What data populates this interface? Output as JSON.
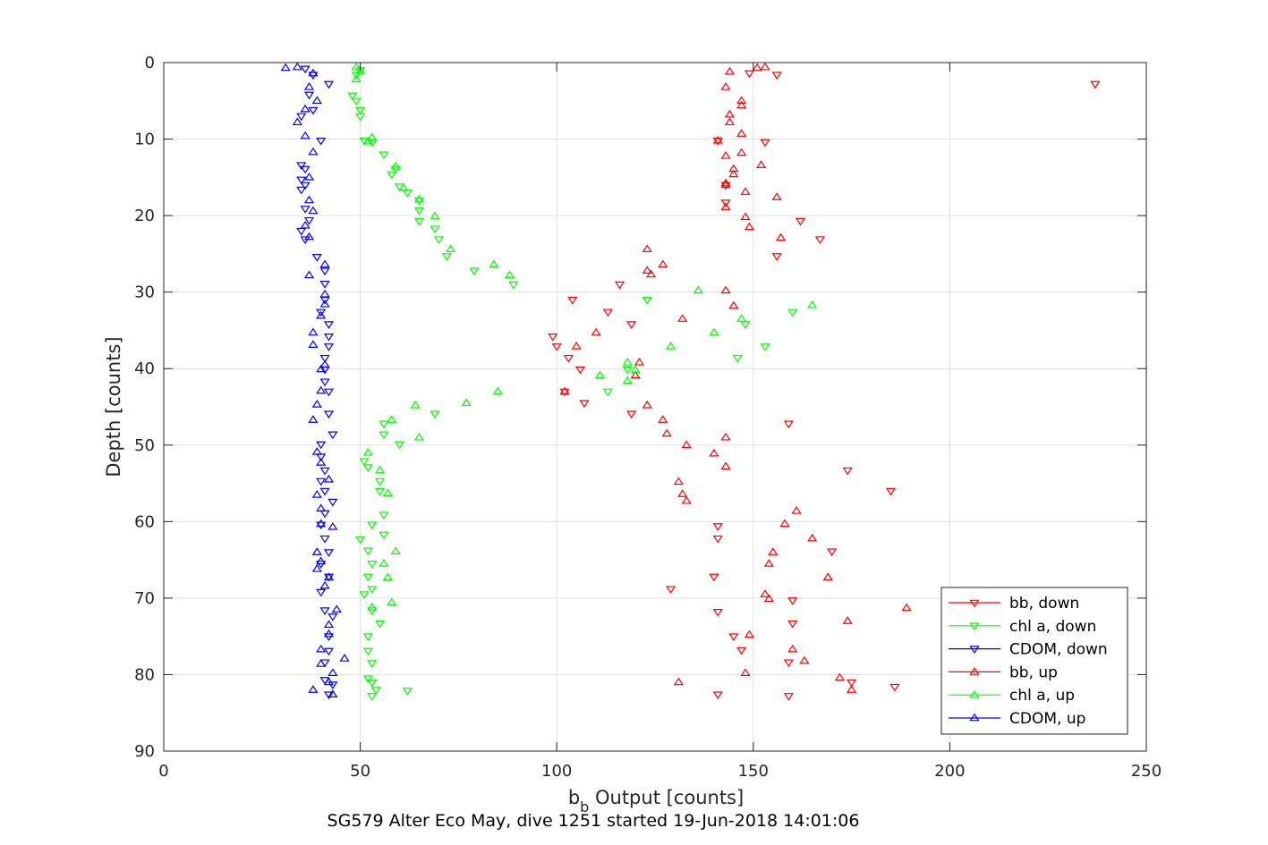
{
  "chart_data": {
    "type": "scatter",
    "xlabel": "b",
    "xlabel_subscript": "b",
    "xlabel_rest": " Output [counts]",
    "ylabel": "Depth [counts]",
    "caption": "SG579 Alter Eco May, dive 1251 started 19-Jun-2018 14:01:06",
    "xlim": [
      0,
      250
    ],
    "ylim": [
      0,
      90
    ],
    "y_reversed": true,
    "xticks": [
      0,
      50,
      100,
      150,
      200,
      250
    ],
    "yticks": [
      0,
      10,
      20,
      30,
      40,
      50,
      60,
      70,
      80,
      90
    ],
    "grid": true,
    "legend_position": "bottom-right",
    "series": [
      {
        "name": "bb, down",
        "color": "#ff0000",
        "marker": "triangle-down",
        "points": [
          [
            149,
            1.4
          ],
          [
            156,
            1.6
          ],
          [
            237,
            2.8
          ],
          [
            153,
            10.4
          ],
          [
            162,
            20.7
          ],
          [
            167,
            23.1
          ],
          [
            156,
            25.3
          ],
          [
            116,
            29.0
          ],
          [
            104,
            31.0
          ],
          [
            113,
            32.6
          ],
          [
            119,
            34.2
          ],
          [
            99,
            35.8
          ],
          [
            100,
            37.1
          ],
          [
            103,
            38.6
          ],
          [
            106,
            40.1
          ],
          [
            102,
            43.0
          ],
          [
            107,
            44.5
          ],
          [
            119,
            45.9
          ],
          [
            159,
            47.2
          ],
          [
            174,
            53.3
          ],
          [
            185,
            56.0
          ],
          [
            141,
            60.6
          ],
          [
            141,
            62.2
          ],
          [
            170,
            63.9
          ],
          [
            140,
            67.2
          ],
          [
            129,
            68.8
          ],
          [
            160,
            70.3
          ],
          [
            141,
            71.8
          ],
          [
            160,
            73.3
          ],
          [
            145,
            75.0
          ],
          [
            147,
            76.8
          ],
          [
            159,
            78.4
          ],
          [
            175,
            81.0
          ],
          [
            186,
            81.6
          ],
          [
            141,
            82.6
          ],
          [
            159,
            82.8
          ],
          [
            141,
            10.2
          ],
          [
            143,
            18.3
          ],
          [
            143,
            16.0
          ]
        ]
      },
      {
        "name": "chl a, down",
        "color": "#00ff00",
        "marker": "triangle-down",
        "points": [
          [
            50,
            1.0
          ],
          [
            49,
            1.6
          ],
          [
            48,
            4.3
          ],
          [
            49,
            5.0
          ],
          [
            50,
            6.2
          ],
          [
            50,
            7.0
          ],
          [
            51,
            10.2
          ],
          [
            53,
            10.4
          ],
          [
            56,
            12.0
          ],
          [
            59,
            13.9
          ],
          [
            58,
            14.6
          ],
          [
            60,
            16.2
          ],
          [
            62,
            17.0
          ],
          [
            65,
            18.0
          ],
          [
            65,
            19.3
          ],
          [
            65,
            20.7
          ],
          [
            69,
            21.7
          ],
          [
            70,
            23.1
          ],
          [
            72,
            25.3
          ],
          [
            79,
            27.2
          ],
          [
            89,
            29.0
          ],
          [
            123,
            31.0
          ],
          [
            148,
            34.2
          ],
          [
            160,
            32.6
          ],
          [
            153,
            37.1
          ],
          [
            146,
            38.6
          ],
          [
            118,
            40.1
          ],
          [
            113,
            43.0
          ],
          [
            69,
            45.9
          ],
          [
            60,
            49.9
          ],
          [
            51,
            52.1
          ],
          [
            52,
            52.9
          ],
          [
            55,
            54.7
          ],
          [
            55,
            56.0
          ],
          [
            56,
            59.1
          ],
          [
            53,
            60.4
          ],
          [
            56,
            61.7
          ],
          [
            50,
            62.3
          ],
          [
            52,
            63.8
          ],
          [
            53,
            65.5
          ],
          [
            52,
            67.2
          ],
          [
            53,
            68.8
          ],
          [
            51,
            69.5
          ],
          [
            53,
            71.6
          ],
          [
            55,
            73.3
          ],
          [
            52,
            75.0
          ],
          [
            52,
            76.9
          ],
          [
            53,
            78.5
          ],
          [
            52,
            80.5
          ],
          [
            53,
            81.0
          ],
          [
            54,
            82.0
          ],
          [
            62,
            82.1
          ],
          [
            53,
            82.8
          ],
          [
            56,
            47.2
          ],
          [
            56,
            48.6
          ]
        ]
      },
      {
        "name": "CDOM, down",
        "color": "#0000ff",
        "marker": "triangle-down",
        "points": [
          [
            36,
            0.8
          ],
          [
            38,
            1.6
          ],
          [
            42,
            2.8
          ],
          [
            37,
            4.2
          ],
          [
            38,
            6.2
          ],
          [
            35,
            7.0
          ],
          [
            40,
            10.2
          ],
          [
            36,
            13.9
          ],
          [
            35,
            15.3
          ],
          [
            35,
            16.6
          ],
          [
            36,
            19.1
          ],
          [
            37,
            20.6
          ],
          [
            35,
            22.0
          ],
          [
            36,
            23.1
          ],
          [
            39,
            25.4
          ],
          [
            41,
            27.2
          ],
          [
            41,
            28.9
          ],
          [
            41,
            31.0
          ],
          [
            40,
            32.6
          ],
          [
            42,
            34.2
          ],
          [
            42,
            35.8
          ],
          [
            42,
            37.1
          ],
          [
            41,
            38.6
          ],
          [
            41,
            40.1
          ],
          [
            41,
            41.7
          ],
          [
            42,
            43.0
          ],
          [
            42,
            45.9
          ],
          [
            43,
            48.6
          ],
          [
            40,
            49.9
          ],
          [
            40,
            51.5
          ],
          [
            41,
            53.3
          ],
          [
            40,
            54.7
          ],
          [
            41,
            56.0
          ],
          [
            43,
            57.4
          ],
          [
            41,
            58.9
          ],
          [
            40,
            60.4
          ],
          [
            41,
            62.2
          ],
          [
            42,
            64.0
          ],
          [
            40,
            65.5
          ],
          [
            42,
            67.2
          ],
          [
            40,
            69.2
          ],
          [
            41,
            71.6
          ],
          [
            43,
            72.4
          ],
          [
            42,
            75.0
          ],
          [
            42,
            76.9
          ],
          [
            41,
            78.4
          ],
          [
            41,
            80.7
          ],
          [
            43,
            81.3
          ],
          [
            42,
            82.6
          ],
          [
            35,
            13.4
          ],
          [
            36,
            16.0
          ]
        ]
      },
      {
        "name": "bb, up",
        "color": "#ff0000",
        "marker": "triangle-up",
        "points": [
          [
            151,
            0.7
          ],
          [
            153,
            0.6
          ],
          [
            144,
            1.2
          ],
          [
            143,
            3.2
          ],
          [
            147,
            5.0
          ],
          [
            147,
            5.6
          ],
          [
            144,
            6.8
          ],
          [
            144,
            7.8
          ],
          [
            147,
            9.3
          ],
          [
            141,
            10.2
          ],
          [
            143,
            12.2
          ],
          [
            147,
            11.8
          ],
          [
            145,
            13.9
          ],
          [
            145,
            14.6
          ],
          [
            152,
            13.4
          ],
          [
            143,
            16.0
          ],
          [
            148,
            16.9
          ],
          [
            156,
            17.6
          ],
          [
            143,
            18.9
          ],
          [
            148,
            20.2
          ],
          [
            149,
            21.5
          ],
          [
            157,
            22.9
          ],
          [
            123,
            24.4
          ],
          [
            123,
            27.2
          ],
          [
            124,
            27.7
          ],
          [
            127,
            26.4
          ],
          [
            143,
            29.8
          ],
          [
            145,
            31.8
          ],
          [
            132,
            33.5
          ],
          [
            110,
            35.3
          ],
          [
            105,
            37.1
          ],
          [
            121,
            39.2
          ],
          [
            120,
            40.9
          ],
          [
            102,
            43.0
          ],
          [
            123,
            44.8
          ],
          [
            127,
            46.7
          ],
          [
            128,
            48.5
          ],
          [
            133,
            50.0
          ],
          [
            143,
            49.0
          ],
          [
            140,
            51.1
          ],
          [
            143,
            52.8
          ],
          [
            131,
            54.8
          ],
          [
            132,
            56.4
          ],
          [
            133,
            57.3
          ],
          [
            161,
            58.6
          ],
          [
            158,
            60.3
          ],
          [
            165,
            62.2
          ],
          [
            155,
            64.0
          ],
          [
            154,
            65.5
          ],
          [
            169,
            67.3
          ],
          [
            153,
            69.5
          ],
          [
            154,
            70.1
          ],
          [
            189,
            71.3
          ],
          [
            174,
            73.0
          ],
          [
            149,
            74.8
          ],
          [
            160,
            76.7
          ],
          [
            163,
            78.2
          ],
          [
            148,
            79.8
          ],
          [
            131,
            81.0
          ],
          [
            172,
            80.4
          ],
          [
            175,
            82.0
          ],
          [
            143,
            15.8
          ]
        ]
      },
      {
        "name": "chl a, up",
        "color": "#00ff00",
        "marker": "triangle-up",
        "points": [
          [
            49,
            0.6
          ],
          [
            50,
            1.1
          ],
          [
            49,
            2.2
          ],
          [
            53,
            9.8
          ],
          [
            52,
            10.3
          ],
          [
            59,
            13.6
          ],
          [
            61,
            16.4
          ],
          [
            65,
            17.9
          ],
          [
            69,
            20.1
          ],
          [
            73,
            24.4
          ],
          [
            84,
            26.4
          ],
          [
            88,
            27.8
          ],
          [
            136,
            29.8
          ],
          [
            165,
            31.7
          ],
          [
            147,
            33.5
          ],
          [
            140,
            35.3
          ],
          [
            129,
            37.1
          ],
          [
            118,
            39.2
          ],
          [
            120,
            40.2
          ],
          [
            118,
            41.6
          ],
          [
            111,
            40.9
          ],
          [
            85,
            43.0
          ],
          [
            77,
            44.5
          ],
          [
            64,
            44.8
          ],
          [
            58,
            46.7
          ],
          [
            65,
            49.0
          ],
          [
            52,
            51.0
          ],
          [
            55,
            53.3
          ],
          [
            57,
            56.3
          ],
          [
            59,
            63.9
          ],
          [
            56,
            65.5
          ],
          [
            57,
            67.3
          ],
          [
            53,
            71.2
          ],
          [
            58,
            70.6
          ]
        ]
      },
      {
        "name": "CDOM, up",
        "color": "#0000ff",
        "marker": "triangle-up",
        "points": [
          [
            31,
            0.7
          ],
          [
            34,
            0.6
          ],
          [
            38,
            1.4
          ],
          [
            37,
            3.2
          ],
          [
            39,
            5.0
          ],
          [
            36,
            6.1
          ],
          [
            34,
            7.8
          ],
          [
            36,
            9.6
          ],
          [
            38,
            11.7
          ],
          [
            37,
            15.0
          ],
          [
            37,
            18.0
          ],
          [
            38,
            19.4
          ],
          [
            36,
            21.3
          ],
          [
            37,
            22.8
          ],
          [
            41,
            26.4
          ],
          [
            37,
            27.8
          ],
          [
            41,
            30.3
          ],
          [
            41,
            31.6
          ],
          [
            40,
            33.1
          ],
          [
            38,
            35.3
          ],
          [
            38,
            36.9
          ],
          [
            41,
            39.5
          ],
          [
            40,
            40.1
          ],
          [
            40,
            42.9
          ],
          [
            39,
            44.7
          ],
          [
            38,
            46.7
          ],
          [
            39,
            50.9
          ],
          [
            40,
            52.3
          ],
          [
            42,
            54.5
          ],
          [
            39,
            56.5
          ],
          [
            40,
            58.3
          ],
          [
            40,
            60.3
          ],
          [
            43,
            60.7
          ],
          [
            39,
            64.0
          ],
          [
            39,
            66.2
          ],
          [
            41,
            68.4
          ],
          [
            44,
            71.5
          ],
          [
            42,
            73.5
          ],
          [
            42,
            74.7
          ],
          [
            40,
            76.7
          ],
          [
            46,
            77.9
          ],
          [
            40,
            78.6
          ],
          [
            43,
            79.8
          ],
          [
            42,
            81.0
          ],
          [
            38,
            82.0
          ],
          [
            43,
            82.6
          ],
          [
            40,
            65.2
          ],
          [
            42,
            67.3
          ]
        ]
      }
    ]
  }
}
